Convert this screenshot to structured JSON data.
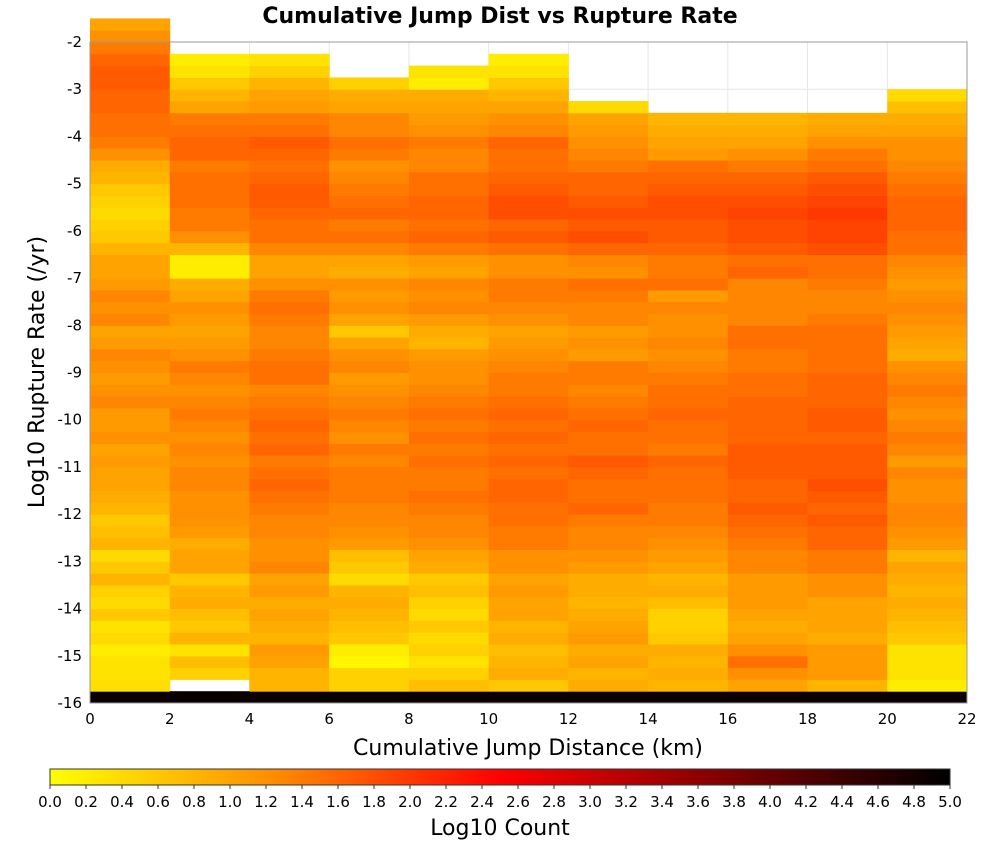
{
  "chart_data": {
    "type": "heatmap",
    "title": "Cumulative Jump Dist vs Rupture Rate",
    "xlabel": "Cumulative Jump Distance (km)",
    "ylabel": "Log10 Rupture Rate (/yr)",
    "colorbar_label": "Log10 Count",
    "xlim": [
      0,
      22
    ],
    "ylim": [
      -16,
      -2
    ],
    "x_ticks": [
      "0",
      "2",
      "4",
      "6",
      "8",
      "10",
      "12",
      "14",
      "16",
      "18",
      "20",
      "22"
    ],
    "y_ticks": [
      "-2",
      "-3",
      "-4",
      "-5",
      "-6",
      "-7",
      "-8",
      "-9",
      "-10",
      "-11",
      "-12",
      "-13",
      "-14",
      "-15",
      "-16"
    ],
    "colorbar_ticks": [
      "0.0",
      "0.2",
      "0.4",
      "0.6",
      "0.8",
      "1.0",
      "1.2",
      "1.4",
      "1.6",
      "1.8",
      "2.0",
      "2.2",
      "2.4",
      "2.6",
      "2.8",
      "3.0",
      "3.2",
      "3.4",
      "3.6",
      "3.8",
      "4.0",
      "4.2",
      "4.4",
      "4.6",
      "4.8",
      "5.0"
    ],
    "colorbar_range": [
      0,
      5
    ],
    "colormap": [
      "#ffff00",
      "#ff8c00",
      "#ff0000",
      "#7f0000",
      "#000000"
    ],
    "grid": true,
    "x_bin_edges": [
      0,
      2,
      4,
      6,
      8,
      10,
      12,
      14,
      16,
      18,
      20,
      22
    ],
    "y_bin_start": -16,
    "y_bin_width": 0.25,
    "columns": [
      {
        "bin_start_row": 0,
        "values": [
          4.9,
          0.35,
          0.3,
          0.3,
          0.2,
          0.4,
          0.3,
          0.6,
          0.4,
          0.5,
          0.8,
          0.6,
          0.4,
          0.8,
          0.7,
          0.6,
          0.8,
          0.9,
          1.0,
          1.0,
          1.1,
          1.0,
          1.2,
          1.1,
          1.1,
          1.3,
          1.2,
          1.1,
          1.2,
          1.3,
          1.1,
          1.0,
          1.3,
          1.2,
          1.3,
          1.1,
          1.0,
          1.0,
          0.8,
          0.6,
          0.5,
          0.4,
          0.5,
          0.6,
          0.8,
          0.9,
          1.2,
          1.4,
          1.5,
          1.5,
          1.6,
          1.6,
          1.7,
          1.7,
          1.6,
          1.4,
          1.2,
          1.0
        ]
      },
      {
        "bin_start_row": 0,
        "values": [
          4.9,
          null,
          0.5,
          0.7,
          0.3,
          0.8,
          0.6,
          0.7,
          0.9,
          0.8,
          0.6,
          1.0,
          1.0,
          0.9,
          1.1,
          1.2,
          1.2,
          1.2,
          1.3,
          1.3,
          1.2,
          1.3,
          1.2,
          1.3,
          1.4,
          1.3,
          1.2,
          1.3,
          1.4,
          1.2,
          1.1,
          1.0,
          1.1,
          1.2,
          1.0,
          0.9,
          0.2,
          0.2,
          0.8,
          1.2,
          1.4,
          1.4,
          1.5,
          1.5,
          1.5,
          1.4,
          1.6,
          1.6,
          1.5,
          1.4,
          1.0,
          0.8,
          0.6,
          0.3,
          0.2
        ]
      },
      {
        "bin_start_row": 0,
        "values": [
          4.9,
          0.8,
          0.8,
          1.0,
          1.1,
          0.8,
          0.9,
          1.0,
          0.9,
          1.1,
          1.0,
          1.3,
          1.2,
          1.2,
          1.3,
          1.3,
          1.4,
          1.5,
          1.6,
          1.5,
          1.4,
          1.6,
          1.5,
          1.6,
          1.5,
          1.4,
          1.3,
          1.5,
          1.5,
          1.4,
          1.3,
          1.3,
          1.4,
          1.5,
          1.4,
          1.2,
          1.0,
          1.0,
          1.3,
          1.5,
          1.5,
          1.6,
          1.7,
          1.7,
          1.6,
          1.5,
          1.6,
          1.7,
          1.5,
          1.4,
          1.1,
          1.0,
          0.8,
          0.5,
          0.3
        ]
      },
      {
        "bin_start_row": 0,
        "values": [
          4.9,
          0.5,
          0.5,
          0.1,
          0.2,
          0.6,
          0.7,
          0.8,
          0.9,
          0.8,
          0.4,
          0.6,
          0.7,
          1.1,
          1.2,
          1.3,
          1.3,
          1.4,
          1.4,
          1.4,
          1.3,
          1.4,
          1.2,
          1.3,
          1.4,
          1.3,
          1.2,
          1.1,
          1.3,
          1.2,
          1.0,
          0.6,
          1.0,
          1.2,
          1.1,
          1.2,
          0.9,
          1.0,
          1.3,
          1.5,
          1.4,
          1.6,
          1.5,
          1.4,
          1.3,
          1.2,
          1.4,
          1.5,
          1.3,
          1.3,
          1.0,
          0.9,
          0.5
        ]
      },
      {
        "bin_start_row": 0,
        "values": [
          4.9,
          0.7,
          0.5,
          0.3,
          0.5,
          0.4,
          0.6,
          0.4,
          0.5,
          0.7,
          0.6,
          0.9,
          1.0,
          1.2,
          1.3,
          1.3,
          1.4,
          1.5,
          1.4,
          1.4,
          1.5,
          1.4,
          1.5,
          1.4,
          1.5,
          1.4,
          1.3,
          1.2,
          1.2,
          1.1,
          0.8,
          0.9,
          1.1,
          1.3,
          1.2,
          1.3,
          1.0,
          1.1,
          1.4,
          1.6,
          1.5,
          1.6,
          1.6,
          1.5,
          1.5,
          1.3,
          1.3,
          1.4,
          1.2,
          1.1,
          1.0,
          0.9,
          0.2,
          0.3
        ]
      },
      {
        "bin_start_row": 0,
        "values": [
          4.9,
          0.6,
          0.9,
          0.8,
          0.7,
          0.9,
          0.8,
          1.0,
          1.0,
          1.1,
          1.0,
          1.2,
          1.2,
          1.4,
          1.4,
          1.5,
          1.5,
          1.6,
          1.6,
          1.5,
          1.6,
          1.5,
          1.6,
          1.5,
          1.6,
          1.5,
          1.4,
          1.4,
          1.3,
          1.2,
          1.1,
          1.0,
          1.2,
          1.3,
          1.4,
          1.4,
          1.2,
          1.2,
          1.5,
          1.7,
          1.6,
          1.8,
          1.8,
          1.7,
          1.6,
          1.5,
          1.5,
          1.6,
          1.3,
          1.2,
          1.0,
          0.8,
          0.6,
          0.3,
          0.2
        ]
      },
      {
        "bin_start_row": 0,
        "values": [
          4.9,
          0.9,
          0.8,
          1.0,
          0.9,
          1.1,
          1.0,
          0.9,
          0.8,
          0.9,
          0.9,
          1.1,
          1.2,
          1.3,
          1.3,
          1.4,
          1.6,
          1.5,
          1.5,
          1.6,
          1.7,
          1.5,
          1.5,
          1.6,
          1.5,
          1.4,
          1.3,
          1.4,
          1.4,
          1.1,
          1.2,
          1.1,
          1.3,
          1.3,
          1.4,
          1.5,
          1.2,
          1.3,
          1.6,
          1.8,
          1.7,
          1.8,
          1.7,
          1.6,
          1.6,
          1.4,
          1.3,
          1.2,
          1.1,
          1.0,
          0.4
        ]
      },
      {
        "bin_start_row": 0,
        "values": [
          4.9,
          0.8,
          0.9,
          0.8,
          0.9,
          0.6,
          0.5,
          0.5,
          0.7,
          0.9,
          0.8,
          1.0,
          1.1,
          1.2,
          1.3,
          1.4,
          1.4,
          1.5,
          1.5,
          1.5,
          1.6,
          1.4,
          1.5,
          1.5,
          1.6,
          1.5,
          1.5,
          1.4,
          1.3,
          1.2,
          1.3,
          1.2,
          1.2,
          1.3,
          1.1,
          1.5,
          1.4,
          1.4,
          1.6,
          1.7,
          1.7,
          1.8,
          1.8,
          1.7,
          1.6,
          1.5,
          1.1,
          1.0,
          0.9,
          0.8
        ]
      },
      {
        "bin_start_row": 0,
        "values": [
          4.9,
          1.0,
          1.2,
          1.5,
          1.2,
          1.0,
          0.9,
          1.0,
          1.1,
          1.1,
          1.1,
          1.3,
          1.3,
          1.4,
          1.5,
          1.6,
          1.7,
          1.6,
          1.6,
          1.7,
          1.7,
          1.7,
          1.6,
          1.6,
          1.6,
          1.6,
          1.5,
          1.5,
          1.4,
          1.4,
          1.5,
          1.5,
          1.3,
          1.3,
          1.3,
          1.3,
          1.6,
          1.5,
          1.7,
          1.8,
          1.8,
          1.9,
          1.8,
          1.7,
          1.6,
          1.4,
          1.2,
          1.0,
          0.9,
          0.8
        ]
      },
      {
        "bin_start_row": 0,
        "values": [
          4.9,
          0.8,
          1.1,
          1.1,
          1.1,
          0.9,
          1.0,
          1.0,
          1.0,
          1.2,
          1.2,
          1.4,
          1.4,
          1.6,
          1.6,
          1.7,
          1.6,
          1.7,
          1.8,
          1.7,
          1.7,
          1.7,
          1.6,
          1.7,
          1.7,
          1.6,
          1.6,
          1.6,
          1.5,
          1.5,
          1.5,
          1.5,
          1.4,
          1.3,
          1.3,
          1.4,
          1.5,
          1.5,
          1.8,
          1.9,
          1.9,
          2.0,
          1.9,
          1.8,
          1.7,
          1.5,
          1.4,
          1.2,
          1.0,
          0.9
        ]
      },
      {
        "bin_start_row": 0,
        "values": [
          4.9,
          0.2,
          0.3,
          0.3,
          0.3,
          0.6,
          0.7,
          0.8,
          0.9,
          0.8,
          0.9,
          1.0,
          0.8,
          1.1,
          1.2,
          1.3,
          1.3,
          1.2,
          1.2,
          1.3,
          1.1,
          1.3,
          1.4,
          1.3,
          1.2,
          1.3,
          1.4,
          1.3,
          1.2,
          0.9,
          1.0,
          1.1,
          1.2,
          1.3,
          1.2,
          1.1,
          1.2,
          1.3,
          1.5,
          1.5,
          1.6,
          1.6,
          1.6,
          1.5,
          1.4,
          1.3,
          1.2,
          1.2,
          1.0,
          0.9,
          0.7,
          0.4
        ]
      }
    ]
  }
}
